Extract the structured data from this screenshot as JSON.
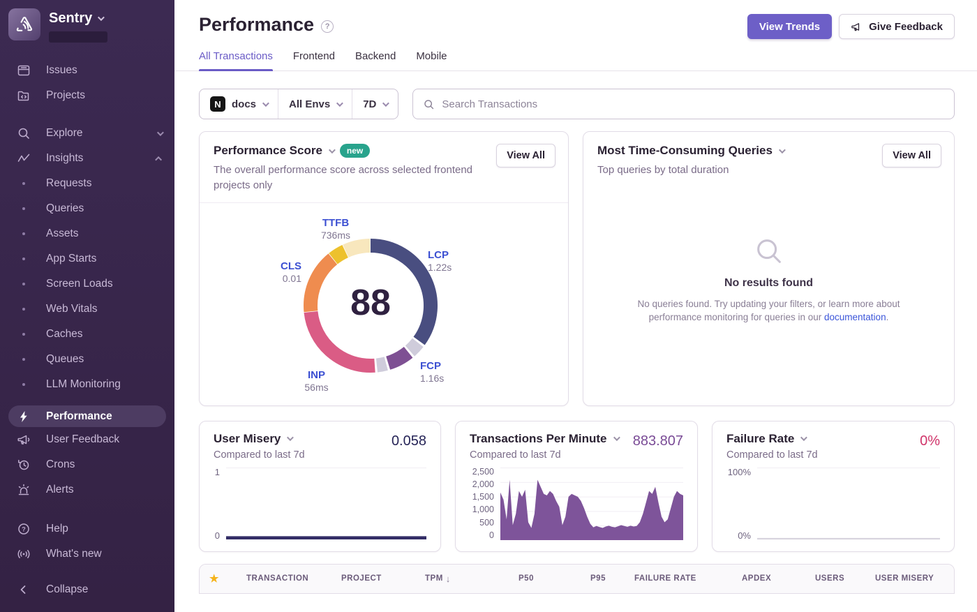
{
  "colors": {
    "accent_purple": "#6d5fc7",
    "link_blue": "#3b55d9",
    "sidebar_bg": "#3b2951",
    "badge_new_teal": "#28a38c",
    "value_user_misery": "#262457",
    "value_tpm": "#7a4b96",
    "value_failure_rate": "#d0346a",
    "star_gold": "#f5b31a"
  },
  "sidebar": {
    "brand": "Sentry",
    "items": [
      {
        "label": "Issues"
      },
      {
        "label": "Projects"
      },
      {
        "label": "Explore"
      },
      {
        "label": "Insights"
      },
      {
        "label": "Requests"
      },
      {
        "label": "Queries"
      },
      {
        "label": "Assets"
      },
      {
        "label": "App Starts"
      },
      {
        "label": "Screen Loads"
      },
      {
        "label": "Web Vitals"
      },
      {
        "label": "Caches"
      },
      {
        "label": "Queues"
      },
      {
        "label": "LLM Monitoring"
      },
      {
        "label": "Performance",
        "active": true
      },
      {
        "label": "User Feedback"
      },
      {
        "label": "Crons"
      },
      {
        "label": "Alerts"
      },
      {
        "label": "Help"
      },
      {
        "label": "What's new"
      },
      {
        "label": "Collapse"
      }
    ]
  },
  "header": {
    "title": "Performance",
    "view_trends": "View Trends",
    "give_feedback": "Give Feedback"
  },
  "tabs": [
    {
      "label": "All Transactions"
    },
    {
      "label": "Frontend"
    },
    {
      "label": "Backend"
    },
    {
      "label": "Mobile"
    }
  ],
  "filters": {
    "project_icon_letter": "N",
    "project": "docs",
    "environment": "All Envs",
    "date_range": "7D",
    "search_placeholder": "Search Transactions"
  },
  "performance_score": {
    "title": "Performance Score",
    "badge": "new",
    "subtitle": "The overall performance score across selected frontend projects only",
    "view_all": "View All",
    "score": "88",
    "vitals": [
      {
        "name": "TTFB",
        "value": "736ms"
      },
      {
        "name": "LCP",
        "value": "1.22s"
      },
      {
        "name": "CLS",
        "value": "0.01"
      },
      {
        "name": "INP",
        "value": "56ms"
      },
      {
        "name": "FCP",
        "value": "1.16s"
      }
    ]
  },
  "queries_card": {
    "title": "Most Time-Consuming Queries",
    "subtitle": "Top queries by total duration",
    "view_all": "View All",
    "empty_title": "No results found",
    "empty_text_before_link": "No queries found. Try updating your filters, or learn more about performance monitoring for queries in our ",
    "empty_link": "documentation",
    "empty_text_after_link": "."
  },
  "user_misery_card": {
    "title": "User Misery",
    "value": "0.058",
    "subtitle": "Compared to last 7d",
    "y_max": "1",
    "y_min": "0"
  },
  "tpm_card": {
    "title": "Transactions Per Minute",
    "value": "883.807",
    "subtitle": "Compared to last 7d",
    "ticks": [
      "2,500",
      "2,000",
      "1,500",
      "1,000",
      "500",
      "0"
    ]
  },
  "failure_card": {
    "title": "Failure Rate",
    "value": "0%",
    "subtitle": "Compared to last 7d",
    "y_max": "100%",
    "y_min": "0%"
  },
  "table": {
    "columns": [
      "TRANSACTION",
      "PROJECT",
      "TPM",
      "P50",
      "P95",
      "FAILURE RATE",
      "APDEX",
      "USERS",
      "USER MISERY"
    ],
    "sorted_column": "TPM",
    "sort_direction": "desc",
    "sort_arrow": "↓"
  },
  "chart_data": [
    {
      "type": "pie",
      "name": "performance_score_ring",
      "title": "Performance Score",
      "center_value": 88,
      "segments": [
        {
          "label": "LCP",
          "display_value": "1.22s",
          "color": "#494e80",
          "start": 0,
          "end": 126
        },
        {
          "label": "separator",
          "display_value": "",
          "color": "#cfccdb",
          "start": 128,
          "end": 139
        },
        {
          "label": "FCP",
          "display_value": "1.16s",
          "color": "#7e5093",
          "start": 141,
          "end": 163
        },
        {
          "label": "separator",
          "display_value": "",
          "color": "#cfccdb",
          "start": 165,
          "end": 174
        },
        {
          "label": "INP",
          "display_value": "56ms",
          "color": "#da5c85",
          "start": 176,
          "end": 264
        },
        {
          "label": "CLS",
          "display_value": "0.01",
          "color": "#ef8c4f",
          "start": 264.5,
          "end": 321
        },
        {
          "label": "TTFB",
          "display_value": "736ms",
          "color": "#edc12d",
          "start": 321.5,
          "end": 335
        },
        {
          "label": "TTFB-rest",
          "display_value": "",
          "color": "#f8e7bd",
          "start": 335.5,
          "end": 359.5
        }
      ]
    },
    {
      "type": "area",
      "name": "transactions_per_minute",
      "title": "Transactions Per Minute",
      "ylim": [
        0,
        2500
      ],
      "yticks": [
        2500,
        2000,
        1500,
        1000,
        500,
        0
      ],
      "color": "#7e549a",
      "values": [
        1650,
        1400,
        700,
        2100,
        500,
        900,
        1700,
        1500,
        1750,
        600,
        400,
        900,
        2100,
        1850,
        1600,
        1550,
        1700,
        1600,
        1350,
        1150,
        500,
        800,
        1500,
        1600,
        1550,
        1500,
        1350,
        1100,
        800,
        550,
        420,
        470,
        430,
        400,
        450,
        480,
        440,
        420,
        460,
        500,
        470,
        440,
        480,
        450,
        470,
        600,
        900,
        1300,
        1700,
        1600,
        1850,
        1300,
        800,
        600,
        700,
        1100,
        1500,
        1700,
        1600,
        1550
      ]
    },
    {
      "type": "line",
      "name": "user_misery",
      "title": "User Misery",
      "ylim": [
        0,
        1
      ],
      "current": 0.058,
      "color": "#332d66",
      "values": [
        0.02,
        0.02,
        0.02,
        0.02,
        0.02,
        0.02,
        0.02,
        0.02,
        0.02,
        0.02,
        0.02,
        0.02,
        0.02,
        0.02,
        0.02,
        0.02,
        0.02,
        0.02,
        0.02,
        0.02
      ]
    },
    {
      "type": "line",
      "name": "failure_rate",
      "title": "Failure Rate",
      "ylim": [
        0,
        100
      ],
      "current": 0,
      "color": "#d8d4de",
      "values": [
        0.6,
        0.6,
        0.6,
        0.6,
        0.6,
        0.6,
        0.6,
        0.6,
        0.6,
        0.6,
        0.6,
        0.6,
        0.6,
        0.6,
        0.6,
        0.6,
        0.6,
        0.6,
        0.6,
        0.6
      ]
    }
  ]
}
